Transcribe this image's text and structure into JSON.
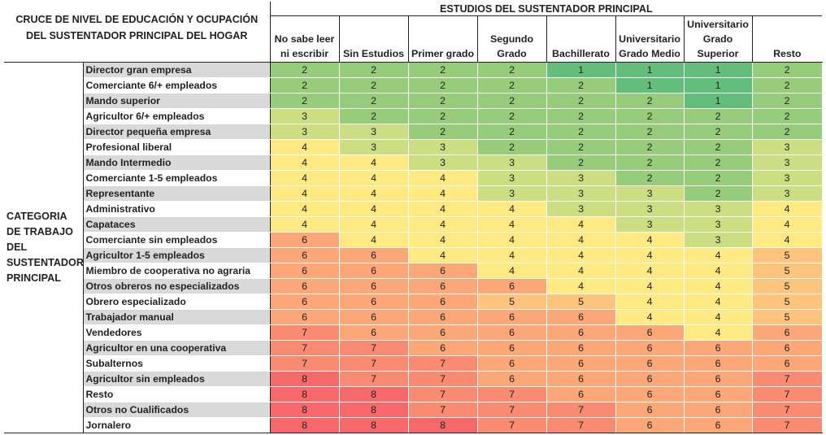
{
  "title": {
    "line1": "CRUCE DE NIVEL DE EDUCACIÓN Y OCUPACIÓN",
    "line2": "DEL SUSTENTADOR PRINCIPAL DEL HOGAR"
  },
  "group_header": "ESTUDIOS DEL SUSTENTADOR PRINCIPAL",
  "row_group_label": "CATEGORIA DE TRABAJO DEL SUSTENTADOR PRINCIPAL",
  "columns": [
    "No sabe leer ni escribir",
    "Sin Estudios",
    "Primer grado",
    "Segundo Grado",
    "Bachillerato",
    "Universitario Grado Medio",
    "Universitario Grado Superior",
    "Resto"
  ],
  "palette": {
    "1": "#63be7b",
    "2": "#97cc7a",
    "3": "#cddd82",
    "4": "#fee983",
    "5": "#fdc47d",
    "6": "#fba777",
    "7": "#f88b71",
    "8": "#f6686a"
  },
  "rows": [
    {
      "label": "Director gran empresa",
      "values": [
        2,
        2,
        2,
        2,
        1,
        1,
        1,
        2
      ]
    },
    {
      "label": "Comerciante 6/+ empleados",
      "values": [
        2,
        2,
        2,
        2,
        2,
        1,
        1,
        2
      ]
    },
    {
      "label": "Mando superior",
      "values": [
        2,
        2,
        2,
        2,
        2,
        2,
        1,
        2
      ]
    },
    {
      "label": "Agricultor 6/+ empleados",
      "values": [
        3,
        2,
        2,
        2,
        2,
        2,
        2,
        2
      ]
    },
    {
      "label": "Director pequeña empresa",
      "values": [
        3,
        3,
        2,
        2,
        2,
        2,
        2,
        2
      ]
    },
    {
      "label": "Profesional liberal",
      "values": [
        4,
        3,
        3,
        2,
        2,
        2,
        2,
        3
      ]
    },
    {
      "label": "Mando Intermedio",
      "values": [
        4,
        4,
        3,
        3,
        2,
        2,
        2,
        3
      ]
    },
    {
      "label": "Comerciante 1-5 empleados",
      "values": [
        4,
        4,
        4,
        3,
        3,
        2,
        2,
        3
      ]
    },
    {
      "label": "Representante",
      "values": [
        4,
        4,
        4,
        3,
        3,
        3,
        2,
        3
      ]
    },
    {
      "label": "Administrativo",
      "values": [
        4,
        4,
        4,
        4,
        3,
        3,
        3,
        4
      ]
    },
    {
      "label": "Capataces",
      "values": [
        4,
        4,
        4,
        4,
        4,
        3,
        3,
        4
      ]
    },
    {
      "label": "Comerciante sin empleados",
      "values": [
        6,
        4,
        4,
        4,
        4,
        4,
        3,
        4
      ]
    },
    {
      "label": "Agricultor 1-5 empleados",
      "values": [
        6,
        6,
        4,
        4,
        4,
        4,
        4,
        5
      ]
    },
    {
      "label": "Miembro de cooperativa no agraria",
      "values": [
        6,
        6,
        6,
        4,
        4,
        4,
        4,
        5
      ]
    },
    {
      "label": "Otros obreros no especializados",
      "values": [
        6,
        6,
        6,
        6,
        4,
        4,
        4,
        5
      ]
    },
    {
      "label": "Obrero especializado",
      "values": [
        6,
        6,
        6,
        5,
        5,
        4,
        4,
        5
      ]
    },
    {
      "label": "Trabajador manual",
      "values": [
        6,
        6,
        6,
        6,
        6,
        4,
        4,
        5
      ]
    },
    {
      "label": "Vendedores",
      "values": [
        7,
        6,
        6,
        6,
        6,
        6,
        4,
        6
      ]
    },
    {
      "label": "Agricultor en una cooperativa",
      "values": [
        7,
        7,
        6,
        6,
        6,
        6,
        6,
        6
      ]
    },
    {
      "label": "Subalternos",
      "values": [
        7,
        7,
        7,
        6,
        6,
        6,
        6,
        6
      ]
    },
    {
      "label": "Agricultor sin empleados",
      "values": [
        8,
        7,
        7,
        6,
        6,
        6,
        6,
        7
      ]
    },
    {
      "label": "Resto",
      "values": [
        8,
        8,
        7,
        7,
        6,
        6,
        6,
        7
      ]
    },
    {
      "label": "Otros no Cualificados",
      "values": [
        8,
        8,
        7,
        7,
        7,
        6,
        6,
        7
      ]
    },
    {
      "label": "Jornalero",
      "values": [
        8,
        8,
        8,
        7,
        7,
        6,
        6,
        7
      ]
    }
  ]
}
